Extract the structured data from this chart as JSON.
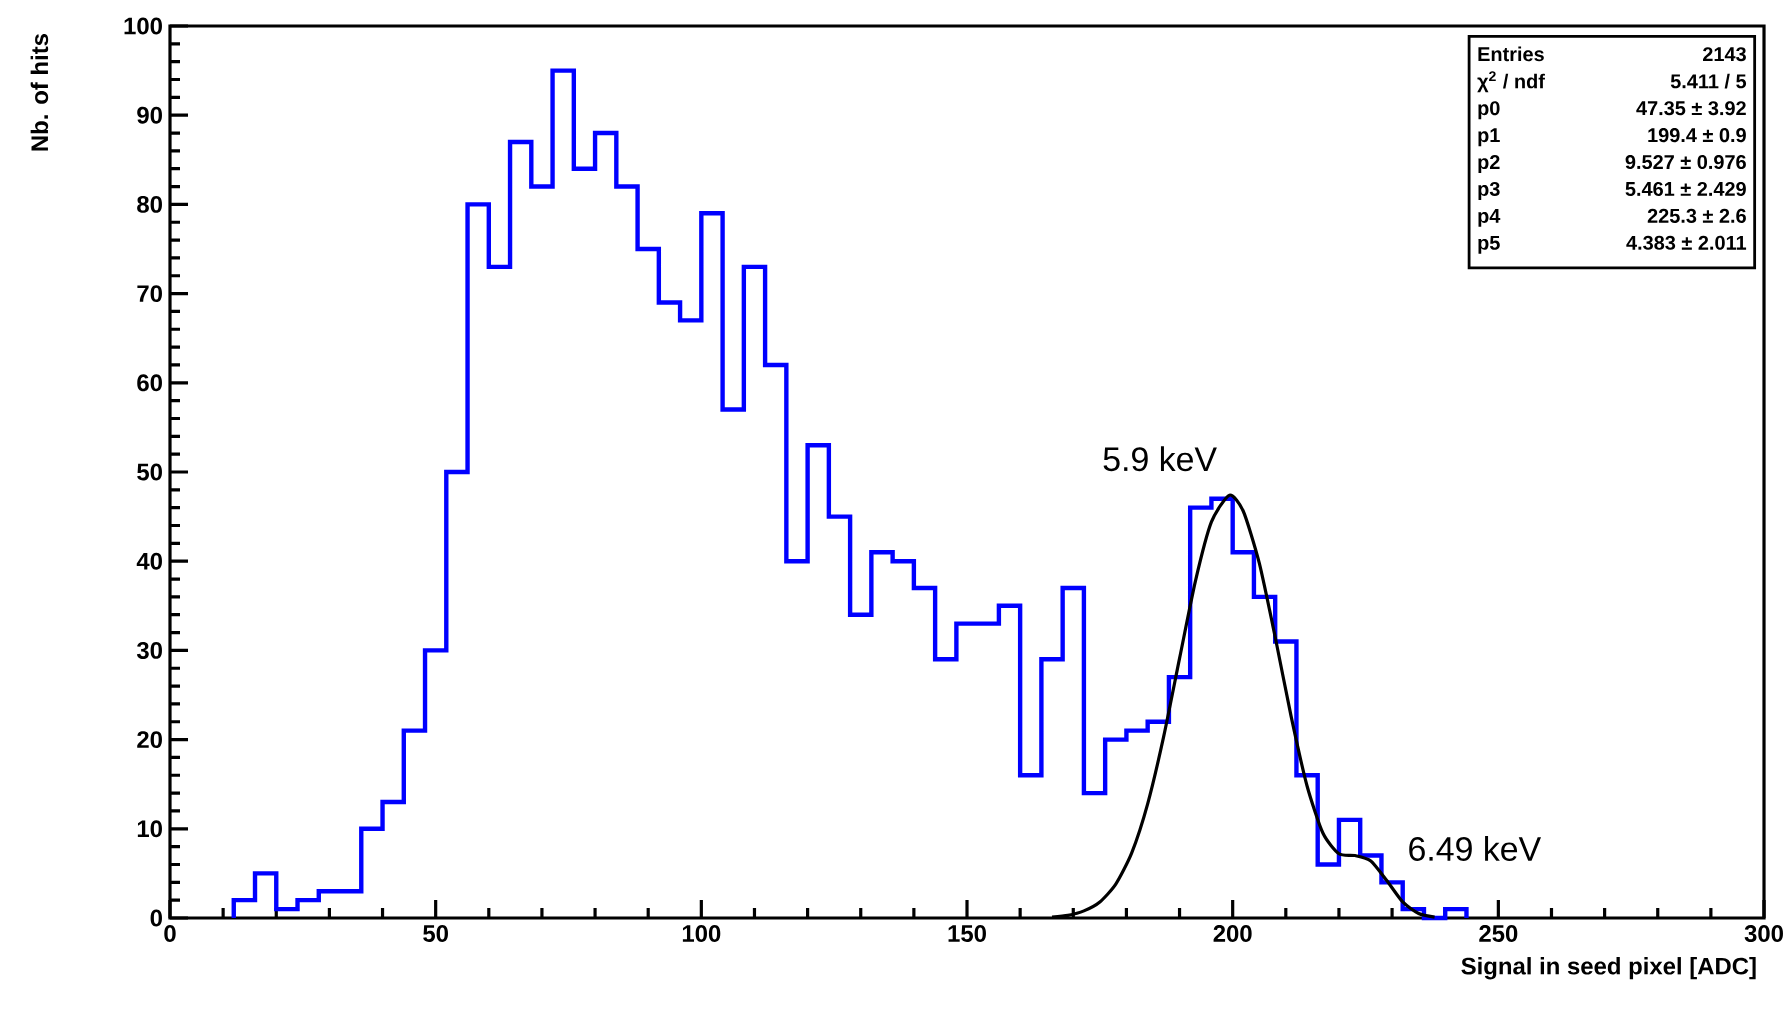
{
  "chart_data": {
    "type": "histogram",
    "xlabel": "Signal in seed pixel [ADC]",
    "ylabel": "Nb. of hits",
    "bins": [
      12,
      16,
      20,
      24,
      28,
      32,
      36,
      40,
      44,
      48,
      52,
      56,
      60,
      64,
      68,
      72,
      76,
      80,
      84,
      88,
      92,
      96,
      100,
      104,
      108,
      112,
      116,
      120,
      124,
      128,
      132,
      136,
      140,
      144,
      148,
      152,
      156,
      160,
      164,
      168,
      172,
      176,
      180,
      184,
      188,
      192,
      196,
      200,
      204,
      208,
      212,
      216,
      220,
      224,
      228,
      232,
      236,
      240,
      244
    ],
    "values": [
      2,
      5,
      1,
      2,
      3,
      3,
      10,
      13,
      21,
      30,
      50,
      80,
      73,
      87,
      82,
      95,
      84,
      88,
      82,
      75,
      69,
      67,
      79,
      57,
      73,
      62,
      40,
      53,
      45,
      34,
      41,
      40,
      37,
      29,
      33,
      33,
      35,
      16,
      29,
      37,
      14,
      20,
      21,
      22,
      27,
      46,
      47,
      41,
      36,
      31,
      16,
      6,
      11,
      7,
      4,
      1,
      0,
      1
    ],
    "color": "#0000ff",
    "series": [
      {
        "type": "line",
        "color": "#000000",
        "x": [
          166,
          169,
          172,
          175,
          178,
          181,
          184,
          187,
          190,
          193,
          196,
          199.4,
          202,
          205,
          208,
          211,
          214,
          217,
          220,
          223,
          226,
          229,
          232,
          235,
          238
        ],
        "values": [
          0.1,
          0.3,
          0.8,
          1.8,
          3.8,
          7.3,
          12.8,
          20.3,
          29.1,
          37.8,
          44.4,
          47.4,
          45.6,
          39.8,
          31.5,
          22.6,
          14.8,
          9.5,
          7.2,
          7,
          6.4,
          4.2,
          1.8,
          0.5,
          0.1
        ]
      }
    ],
    "xlim": [
      0,
      300
    ],
    "xticks": [
      0,
      50,
      100,
      150,
      200,
      250,
      300
    ],
    "ylim": [
      0,
      100
    ],
    "yticks": [
      0,
      10,
      20,
      30,
      40,
      50,
      60,
      70,
      80,
      90,
      100
    ],
    "grid": false,
    "annotations": [
      {
        "text": "5.9 keV",
        "x": 199.4,
        "y": 47.35
      },
      {
        "text": "6.49 keV",
        "x": 225.3,
        "y": 6.35
      },
      "Entries",
      "2143",
      "χ$^{2}$ / ndf",
      "5.411 / 5",
      "p0",
      "47.35 ± 3.92",
      "p1",
      "199.4 ± 0.9",
      "p2",
      "9.527 ± 0.976",
      "p3",
      "5.461 ± 2.429",
      "p4",
      "225.3 ± 2.6",
      "p5",
      "4.383 ± 2.011"
    ]
  }
}
